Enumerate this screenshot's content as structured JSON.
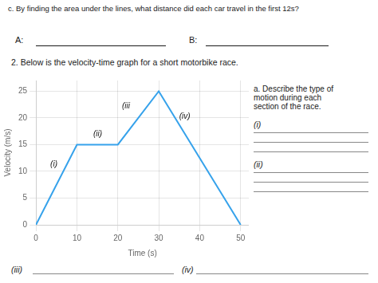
{
  "chart_data": {
    "type": "line",
    "title": "c. By finding the area under the lines, what distance did each car travel in the first 12s?",
    "subtitle": "2. Below is the velocity-time graph for a short motorbike race.",
    "x": [
      0,
      10,
      20,
      30,
      50
    ],
    "values": [
      0,
      15,
      15,
      25,
      0
    ],
    "xlabel": "Time (s)",
    "ylabel": "Velocity (m/s)",
    "xlim": [
      0,
      52
    ],
    "ylim": [
      0,
      27
    ],
    "xticks": [
      0,
      10,
      20,
      30,
      40,
      50
    ],
    "yticks": [
      0,
      5,
      10,
      15,
      20,
      25
    ],
    "grid": true,
    "annotations": [
      {
        "text": "A:"
      },
      {
        "text": "B:"
      },
      {
        "text": "a. Describe the type of\nmotion during each\nsection of the race."
      },
      {
        "text": "(i)"
      },
      {
        "text": "(ii)"
      },
      {
        "text": "(iii)"
      },
      {
        "text": "(iv)"
      },
      {
        "text": "(i)",
        "x": 3.5,
        "y": 10.5
      },
      {
        "text": "(ii)",
        "x": 14,
        "y": 16.2
      },
      {
        "text": "(iii",
        "x": 21,
        "y": 21.5
      },
      {
        "text": "(iv)",
        "x": 35,
        "y": 19.5
      }
    ]
  }
}
